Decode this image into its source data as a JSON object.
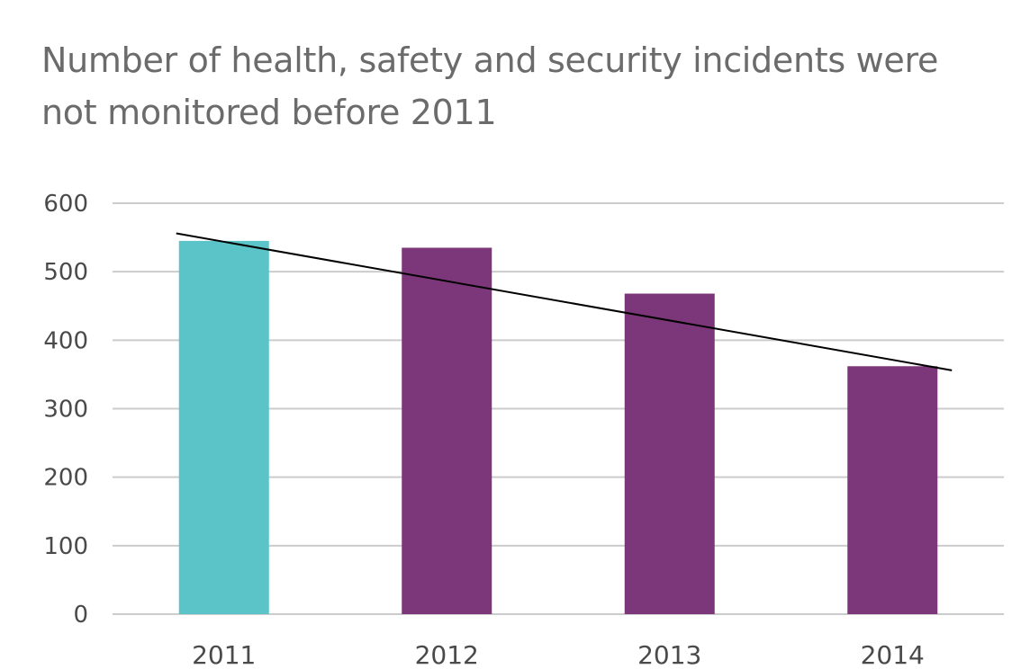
{
  "chart_data": {
    "type": "bar",
    "title": "Number of health, safety and security incidents were not monitored before 2011",
    "categories": [
      "2011",
      "2012",
      "2013",
      "2014"
    ],
    "values": [
      545,
      535,
      468,
      362
    ],
    "bar_colors": [
      "#5bc4c8",
      "#7b3779",
      "#7b3779",
      "#7b3779"
    ],
    "ylim": [
      0,
      600
    ],
    "yticks": [
      0,
      100,
      200,
      300,
      400,
      500,
      600
    ],
    "grid": true,
    "trendline": {
      "start_value": 556,
      "end_value": 356,
      "color": "#000000"
    },
    "gridline_color": "#cccccc",
    "xlabel": "",
    "ylabel": ""
  }
}
